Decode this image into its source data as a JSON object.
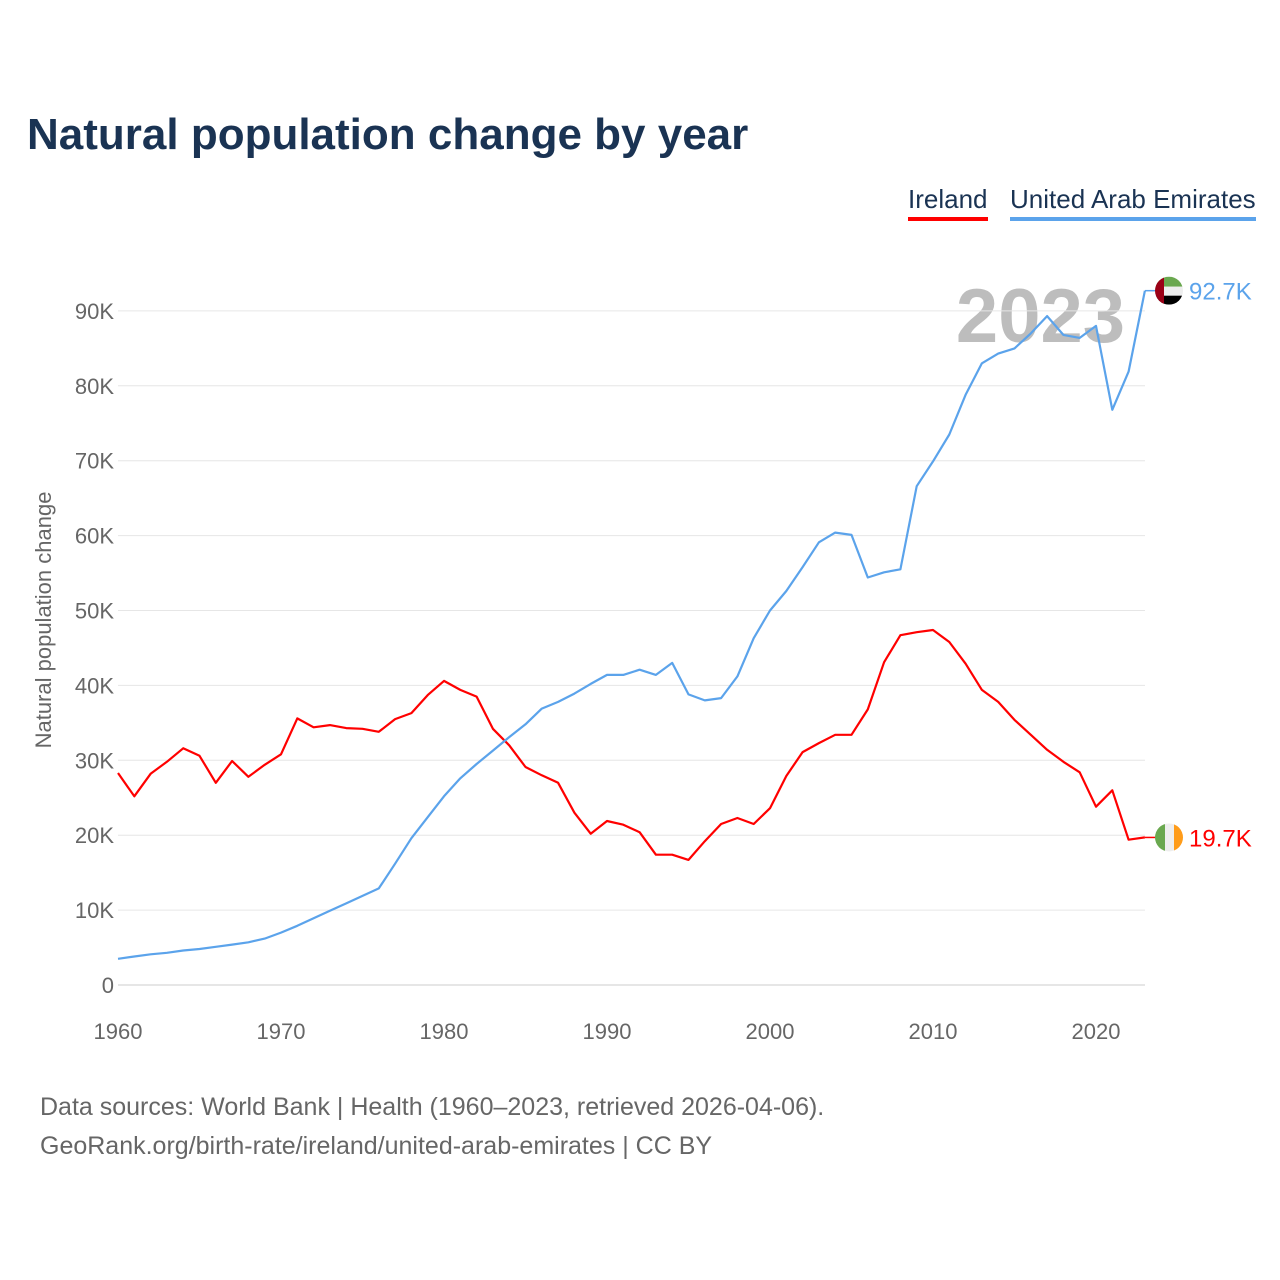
{
  "title": "Natural population change by year",
  "legend": [
    "Ireland",
    "United Arab Emirates"
  ],
  "source_lines": [
    "Data sources: World Bank | Health (1960–2023, retrieved 2026-04-06).",
    "GeoRank.org/birth-rate/ireland/united-arab-emirates | CC BY"
  ],
  "year_watermark": "2023",
  "chart_data": {
    "type": "line",
    "title": "Natural population change by year",
    "xlabel": "",
    "ylabel": "Natural population change",
    "xlim": [
      1960,
      2023
    ],
    "ylim": [
      0,
      90000
    ],
    "x_ticks": [
      "1960",
      "1970",
      "1980",
      "1990",
      "2000",
      "2010",
      "2020"
    ],
    "y_ticks": [
      "0",
      "10K",
      "20K",
      "30K",
      "40K",
      "50K",
      "60K",
      "70K",
      "80K",
      "90K"
    ],
    "grid": true,
    "legend_position": "top-right",
    "x": [
      1960,
      1961,
      1962,
      1963,
      1964,
      1965,
      1966,
      1967,
      1968,
      1969,
      1970,
      1971,
      1972,
      1973,
      1974,
      1975,
      1976,
      1977,
      1978,
      1979,
      1980,
      1981,
      1982,
      1983,
      1984,
      1985,
      1986,
      1987,
      1988,
      1989,
      1990,
      1991,
      1992,
      1993,
      1994,
      1995,
      1996,
      1997,
      1998,
      1999,
      2000,
      2001,
      2002,
      2003,
      2004,
      2005,
      2006,
      2007,
      2008,
      2009,
      2010,
      2011,
      2012,
      2013,
      2014,
      2015,
      2016,
      2017,
      2018,
      2019,
      2020,
      2021,
      2022,
      2023
    ],
    "series": [
      {
        "name": "Ireland",
        "color": "#ff0000",
        "end_label": "19.7K",
        "values": [
          28300,
          25200,
          28200,
          29800,
          31600,
          30600,
          27000,
          29900,
          27800,
          29400,
          30800,
          35600,
          34400,
          34700,
          34300,
          34200,
          33800,
          35500,
          36300,
          38700,
          40600,
          39400,
          38500,
          34200,
          32000,
          29100,
          28000,
          27000,
          23000,
          20200,
          21900,
          21400,
          20400,
          17400,
          17400,
          16700,
          19200,
          21500,
          22300,
          21500,
          23600,
          27900,
          31100,
          32300,
          33400,
          33400,
          36800,
          43100,
          46700,
          47100,
          47400,
          45800,
          42900,
          39400,
          37800,
          35400,
          33400,
          31400,
          29800,
          28400,
          23800,
          26000,
          19400,
          19700
        ]
      },
      {
        "name": "United Arab Emirates",
        "color": "#5ba3eb",
        "end_label": "92.7K",
        "values": [
          3500,
          3800,
          4100,
          4300,
          4600,
          4800,
          5100,
          5400,
          5700,
          6200,
          7000,
          7900,
          8900,
          9900,
          10900,
          11900,
          12900,
          16200,
          19600,
          22400,
          25200,
          27600,
          29500,
          31300,
          33100,
          34800,
          36900,
          37800,
          38900,
          40200,
          41400,
          41400,
          42100,
          41400,
          43000,
          38800,
          38000,
          38300,
          41200,
          46300,
          50000,
          52600,
          55800,
          59100,
          60400,
          60100,
          54400,
          55100,
          55500,
          66600,
          69900,
          73500,
          78800,
          83000,
          84300,
          85000,
          87000,
          89300,
          86800,
          86400,
          88000,
          76800,
          81900,
          92700
        ]
      }
    ]
  }
}
